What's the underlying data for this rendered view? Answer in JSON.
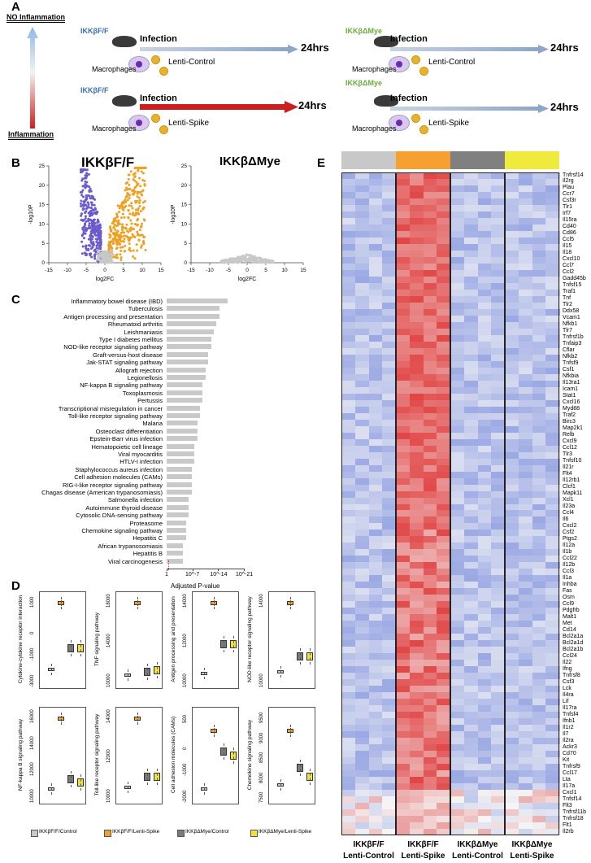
{
  "panels": {
    "A": "A",
    "B": "B",
    "C": "C",
    "D": "D",
    "E": "E"
  },
  "panelA": {
    "no_inflammation": "NO Inflammation",
    "inflammation": "Inflammation",
    "rows": [
      {
        "genotype": "IKKβF/F",
        "infection": "Infection",
        "macrophages": "Macrophages",
        "vector": "Lenti-Control",
        "time": "24hrs"
      },
      {
        "genotype": "IKKβF/F",
        "infection": "Infection",
        "macrophages": "Macrophages",
        "vector": "Lenti-Spike",
        "time": "24hrs"
      },
      {
        "genotype": "IKKβΔMye",
        "infection": "Infection",
        "macrophages": "Macrophages",
        "vector": "Lenti-Control",
        "time": "24hrs"
      },
      {
        "genotype": "IKKβΔMye",
        "infection": "Infection",
        "macrophages": "Macrophages",
        "vector": "Lenti-Spike",
        "time": "24hrs"
      }
    ],
    "colors": {
      "ff": "#3b6fb6",
      "dmye": "#6aae3a",
      "red_arrow": "#cc1e1e",
      "grey_arrow": "#9fb3cc"
    }
  },
  "panelB": {
    "left_title": "IKKβF/F",
    "right_title": "IKKβΔMye",
    "xlabel": "log2FC",
    "ylabel": "-log10P",
    "xticks": [
      "-15",
      "-10",
      "-5",
      "0",
      "5",
      "10",
      "15"
    ],
    "yticks": [
      "0",
      "5",
      "10",
      "15",
      "20",
      "25"
    ],
    "colors": {
      "down": "#6a5acd",
      "up": "#f0a020",
      "ns": "#c8c8c8"
    }
  },
  "panelC": {
    "xlabel": "Adjusted P-value",
    "xticks": [
      "1",
      "10^-7",
      "10^-14",
      "10^-21"
    ],
    "pathways": [
      "Inflammatory bowel disease (IBD)",
      "Tuberculosis",
      "Antigen processing and presentation",
      "Rheumatoid arthritis",
      "Leishmaniasis",
      "Type I diabetes mellitus",
      "NOD-like receptor signaling pathway",
      "Graft-versus-host disease",
      "Jak-STAT signaling pathway",
      "Allograft rejection",
      "Legionellosis",
      "NF-kappa B signaling pathway",
      "Toxoplasmosis",
      "Pertussis",
      "Transcriptional misregulation in cancer",
      "Toll-like receptor signaling pathway",
      "Malaria",
      "Osteoclast differentiation",
      "Epstein-Barr virus infection",
      "Hematopoietic cell lineage",
      "Viral myocarditis",
      "HTLV-I infection",
      "Staphylococcus aureus infection",
      "Cell adhesion molecules (CAMs)",
      "RIG-I-like receptor signaling pathway",
      "Chagas disease (American trypanosomiasis)",
      "Salmonella infection",
      "Autoimmune thyroid disease",
      "Cytosolic DNA-sensing pathway",
      "Proteasome",
      "Chemokine signaling pathway",
      "Hepatitis C",
      "African trypanosomiasis",
      "Hepatitis B",
      "Viral carcinogenesis"
    ],
    "neglog10p": [
      22,
      19,
      19,
      18,
      17,
      16,
      16,
      15,
      15,
      14,
      14,
      13,
      13,
      13,
      12,
      12,
      11,
      11,
      11,
      10,
      10,
      10,
      9,
      9,
      9,
      9,
      8,
      8,
      8,
      7,
      7,
      7,
      6,
      6,
      6
    ]
  },
  "panelD": {
    "plots": [
      {
        "ylabel": "Cytokine-cytokine receptor interaction",
        "yticks": [
          "1000",
          "0",
          "-1000",
          "-3000"
        ]
      },
      {
        "ylabel": "TNF signaling pathway",
        "yticks": [
          "18000",
          "14000",
          "10000"
        ]
      },
      {
        "ylabel": "Antigen processing and presentation",
        "yticks": [
          "14000",
          "12000",
          "10000"
        ]
      },
      {
        "ylabel": "NOD-like receptor signaling pathway",
        "yticks": [
          "14000",
          "10000"
        ]
      },
      {
        "ylabel": "NF-kappa B signaling pathway",
        "yticks": [
          "16000",
          "14000",
          "12000",
          "10000"
        ]
      },
      {
        "ylabel": "Toll-like receptor signaling pathway",
        "yticks": [
          "14000",
          "12000",
          "10000"
        ]
      },
      {
        "ylabel": "Cell adhesion molecules (CAMs)",
        "yticks": [
          "500",
          "0",
          "-1000",
          "-2000"
        ]
      },
      {
        "ylabel": "Chemokine signaling pathway",
        "yticks": [
          "9500",
          "9000",
          "8500",
          "8000",
          "7500"
        ]
      }
    ],
    "legend": [
      {
        "label": "IKKβF/F/Control",
        "color": "#c8c8c8"
      },
      {
        "label": "IKKβF/F/Lenti-Spike",
        "color": "#f0a030"
      },
      {
        "label": "IKKβΔMye/Control",
        "color": "#7a7a7a"
      },
      {
        "label": "IKKβΔMye/Lenti-Spike",
        "color": "#f0e040"
      }
    ],
    "levels": [
      [
        0.15,
        0.95,
        0.4,
        0.4
      ],
      [
        0.08,
        0.95,
        0.12,
        0.14
      ],
      [
        0.1,
        0.95,
        0.45,
        0.45
      ],
      [
        0.12,
        0.95,
        0.3,
        0.3
      ],
      [
        0.1,
        0.95,
        0.22,
        0.18
      ],
      [
        0.12,
        0.95,
        0.25,
        0.25
      ],
      [
        0.1,
        0.8,
        0.55,
        0.5
      ],
      [
        0.15,
        0.8,
        0.35,
        0.25
      ]
    ]
  },
  "panelE": {
    "groups": [
      {
        "line1": "IKKβF/F",
        "line2": "Lenti-Control",
        "color": "#c8c8c8"
      },
      {
        "line1": "IKKβF/F",
        "line2": "Lenti-Spike",
        "color": "#f5a030"
      },
      {
        "line1": "IKKβΔMye",
        "line2": "Lenti-Control",
        "color": "#808080"
      },
      {
        "line1": "IKKβΔMye",
        "line2": "Lenti-Spike",
        "color": "#f0ea3c"
      }
    ],
    "genes": [
      "Tnfrsf14",
      "Il2rg",
      "Plau",
      "Ccr7",
      "Csf3r",
      "Tlr1",
      "Irf7",
      "Il15ra",
      "Cd40",
      "Cd86",
      "Ccl5",
      "Il15",
      "Il18",
      "Cxcl10",
      "Ccl7",
      "Ccl2",
      "Gadd45b",
      "Tnfsf15",
      "Traf1",
      "Tnf",
      "Tlr2",
      "Ddx58",
      "Vcam1",
      "Nfkb1",
      "Tlr7",
      "Tnfrsf1b",
      "Tnfaip3",
      "Cflar",
      "Nfkb2",
      "Tnfsf9",
      "Csf1",
      "Nfkbia",
      "Il13ra1",
      "Icam1",
      "Stat1",
      "Cxcl16",
      "Myd88",
      "Traf2",
      "Birc3",
      "Map2k1",
      "Relb",
      "Cxcl9",
      "Ccl12",
      "Tlr3",
      "Tnfsf10",
      "Il21r",
      "Flt4",
      "Il12rb1",
      "Clcf1",
      "Mapk11",
      "Xcl1",
      "Il23a",
      "Ccl4",
      "Il6",
      "Cxcl2",
      "Csf2",
      "Ptgs2",
      "Il12a",
      "Il1b",
      "Ccl22",
      "Il12b",
      "Ccl3",
      "Il1a",
      "Inhba",
      "Fas",
      "Osm",
      "Ccl9",
      "Pdgfrb",
      "Malt1",
      "Met",
      "Cd14",
      "Bcl2a1a",
      "Bcl2a1d",
      "Bcl2a1b",
      "Ccl24",
      "Il22",
      "Ifng",
      "Tnfrsf8",
      "Csf3",
      "Lck",
      "Il4ra",
      "Lif",
      "Il17ra",
      "Tnfsf4",
      "Ifnb1",
      "Il1r2",
      "Il7",
      "Il2ra",
      "Ackr3",
      "Cd70",
      "Kit",
      "Tnfrsf9",
      "Ccl17",
      "Lta",
      "Il17a",
      "Cxcl1",
      "Tnfsf14",
      "Flt3",
      "Tnfrsf11b",
      "Tnfrsf18",
      "Flt1",
      "Il2rb"
    ]
  }
}
